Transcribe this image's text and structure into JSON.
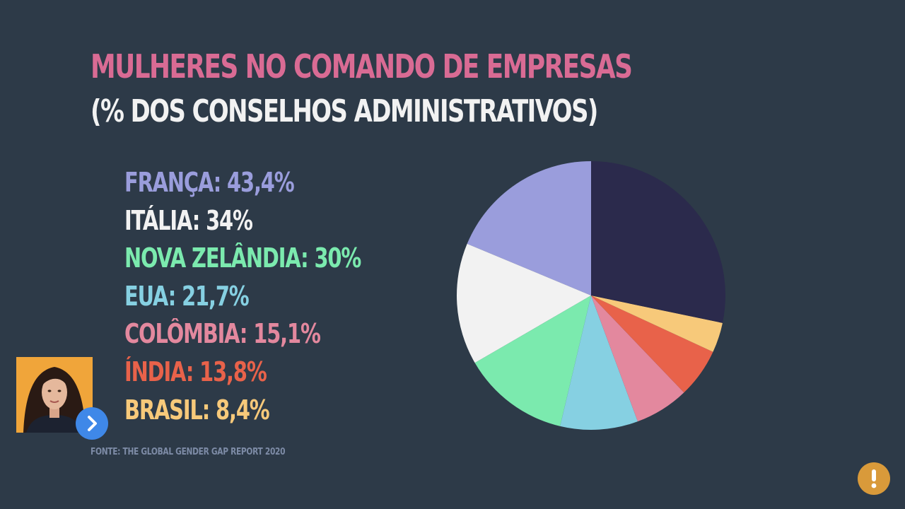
{
  "header": {
    "title": "MULHERES NO COMANDO DE EMPRESAS",
    "subtitle": "(% DOS CONSELHOS ADMINISTRATIVOS)"
  },
  "colors": {
    "title": "#d96b94",
    "subtitle": "#f2f2f2",
    "source": "#7d8ba6",
    "background": "#2d3a48"
  },
  "legend": [
    {
      "label": "FRANÇA: 43,4%",
      "color": "#9a9ddc"
    },
    {
      "label": "ITÁLIA: 34%",
      "color": "#f2f2f2"
    },
    {
      "label": "NOVA ZELÂNDIA: 30%",
      "color": "#7beaae"
    },
    {
      "label": "EUA: 21,7%",
      "color": "#86d0e2"
    },
    {
      "label": "COLÔMBIA: 15,1%",
      "color": "#e3889e"
    },
    {
      "label": "ÍNDIA: 13,8%",
      "color": "#e8624a"
    },
    {
      "label": "BRASIL: 8,4%",
      "color": "#f7c97a"
    }
  ],
  "source": "FONTE: THE GLOBAL GENDER GAP REPORT 2020",
  "chart_data": {
    "type": "pie",
    "title": "MULHERES NO COMANDO DE EMPRESAS",
    "subtitle": "(% DOS CONSELHOS ADMINISTRATIVOS)",
    "slices": [
      {
        "label": "FRANÇA",
        "value": 43.4,
        "color": "#9a9ddc"
      },
      {
        "label": "ITÁLIA",
        "value": 34,
        "color": "#f2f2f2"
      },
      {
        "label": "NOVA ZELÂNDIA",
        "value": 30,
        "color": "#7beaae"
      },
      {
        "label": "EUA",
        "value": 21.7,
        "color": "#86d0e2"
      },
      {
        "label": "COLÔMBIA",
        "value": 15.1,
        "color": "#e3889e"
      },
      {
        "label": "ÍNDIA",
        "value": 13.8,
        "color": "#e8624a"
      },
      {
        "label": "BRASIL",
        "value": 8.4,
        "color": "#f7c97a"
      },
      {
        "label": "",
        "value": 65.6,
        "color": "#2b2a4c"
      }
    ],
    "start_angle_deg": 0,
    "direction": "counterclockwise",
    "legend": "left"
  },
  "overlay": {
    "next_icon": "chevron-right-icon",
    "alert_icon": "exclamation-icon",
    "next_color": "#3f88e8",
    "alert_color": "#d99a3a"
  }
}
